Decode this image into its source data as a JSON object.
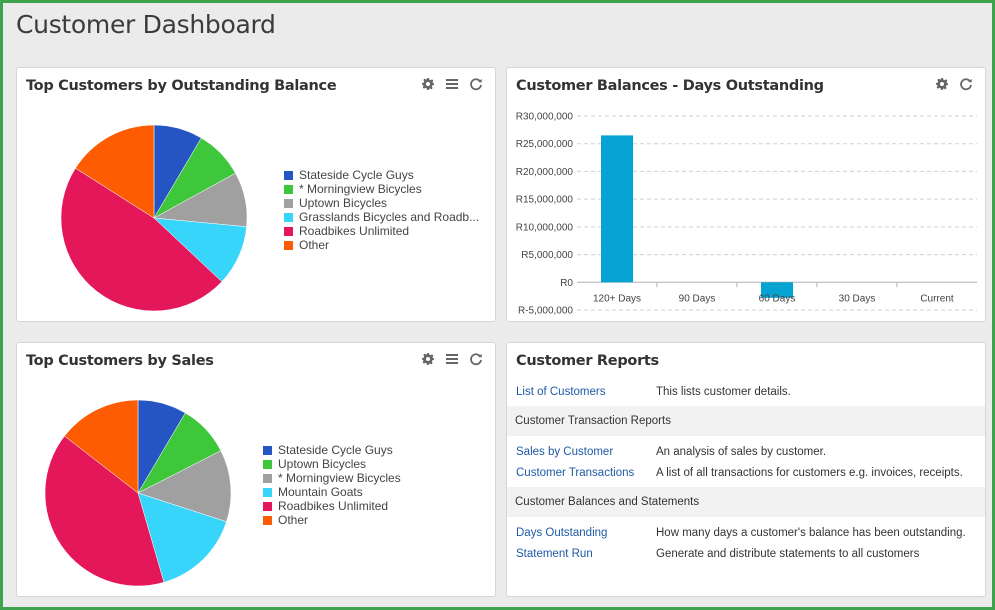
{
  "page": {
    "title": "Customer Dashboard"
  },
  "colors": {
    "blue": "#2455c3",
    "green": "#3ec73a",
    "gray": "#a0a0a0",
    "cyan": "#38d5fb",
    "crimson": "#e4175b",
    "orange": "#fd5c02",
    "bar": "#04a3d1",
    "link": "#1f5aa6"
  },
  "tools": {
    "settings": "gear-icon",
    "list": "list-icon",
    "refresh": "refresh-icon"
  },
  "panels": {
    "top_balance": {
      "title": "Top Customers by Outstanding Balance",
      "legend": [
        "Stateside Cycle Guys",
        "* Morningview Bicycles",
        "Uptown Bicycles",
        "Grasslands Bicycles and Roadb...",
        "Roadbikes Unlimited",
        "Other"
      ]
    },
    "days_outstanding": {
      "title": "Customer Balances - Days Outstanding"
    },
    "top_sales": {
      "title": "Top Customers by Sales",
      "legend": [
        "Stateside Cycle Guys",
        "Uptown Bicycles",
        "* Morningview Bicycles",
        "Mountain Goats",
        "Roadbikes Unlimited",
        "Other"
      ]
    },
    "reports": {
      "title": "Customer Reports",
      "rows": [
        {
          "link": "List of Customers",
          "desc": "This lists customer details."
        }
      ],
      "section1": "Customer Transaction Reports",
      "rows1": [
        {
          "link": "Sales by Customer",
          "desc": "An analysis of sales by customer."
        },
        {
          "link": "Customer Transactions",
          "desc": "A list of all transactions for customers e.g. invoices, receipts."
        }
      ],
      "section2": "Customer Balances and Statements",
      "rows2": [
        {
          "link": "Days Outstanding",
          "desc": "How many days a customer's balance has been outstanding."
        },
        {
          "link": "Statement Run",
          "desc": "Generate and distribute statements to all customers"
        }
      ]
    }
  },
  "chart_data": [
    {
      "type": "pie",
      "title": "Top Customers by Outstanding Balance",
      "labels": [
        "Stateside Cycle Guys",
        "* Morningview Bicycles",
        "Uptown Bicycles",
        "Grasslands Bicycles and Roadb...",
        "Roadbikes Unlimited",
        "Other"
      ],
      "values": [
        8.5,
        8.5,
        9.5,
        10.5,
        47.0,
        16.0
      ],
      "colors": [
        "#2455c3",
        "#3ec73a",
        "#a0a0a0",
        "#38d5fb",
        "#e4175b",
        "#fd5c02"
      ],
      "legend": "right"
    },
    {
      "type": "bar",
      "title": "Customer Balances - Days Outstanding",
      "categories": [
        "120+ Days",
        "90 Days",
        "60 Days",
        "30 Days",
        "Current"
      ],
      "values": [
        26500000,
        0,
        -2800000,
        0,
        0
      ],
      "yticks": [
        "R30,000,000",
        "R25,000,000",
        "R20,000,000",
        "R15,000,000",
        "R10,000,000",
        "R5,000,000",
        "R0",
        "R-5,000,000"
      ],
      "ylim": [
        -5000000,
        30000000
      ],
      "grid": true
    },
    {
      "type": "pie",
      "title": "Top Customers by Sales",
      "labels": [
        "Stateside Cycle Guys",
        "Uptown Bicycles",
        "* Morningview Bicycles",
        "Mountain Goats",
        "Roadbikes Unlimited",
        "Other"
      ],
      "values": [
        8.5,
        9.0,
        12.5,
        15.5,
        40.0,
        14.5
      ],
      "colors": [
        "#2455c3",
        "#3ec73a",
        "#a0a0a0",
        "#38d5fb",
        "#e4175b",
        "#fd5c02"
      ],
      "legend": "right"
    }
  ]
}
